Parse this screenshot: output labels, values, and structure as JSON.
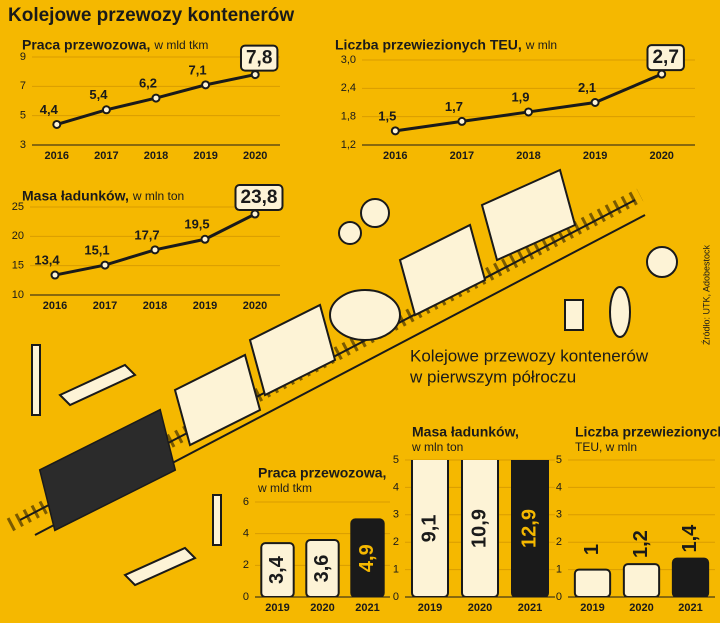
{
  "title": "Kolejowe przewozy kontenerów",
  "section_title": [
    "Kolejowe przewozy kontenerów",
    "w pierwszym półroczu"
  ],
  "source": "Źródło: UTK, Adobestock",
  "chart_data": [
    {
      "type": "line",
      "title": "Praca przewozowa,",
      "subtitle": "w mld tkm",
      "categories": [
        "2016",
        "2017",
        "2018",
        "2019",
        "2020"
      ],
      "values": [
        4.4,
        5.4,
        6.2,
        7.1,
        7.8
      ],
      "value_labels": [
        "4,4",
        "5,4",
        "6,2",
        "7,1",
        "7,8"
      ],
      "color": "#1a1a1a",
      "ylim": [
        3,
        9
      ],
      "yticks": [
        3,
        5,
        7,
        9
      ],
      "grid": true
    },
    {
      "type": "line",
      "title": "Liczba przewiezionych TEU,",
      "subtitle": "w mln",
      "categories": [
        "2016",
        "2017",
        "2018",
        "2019",
        "2020"
      ],
      "values": [
        1.5,
        1.7,
        1.9,
        2.1,
        2.7
      ],
      "value_labels": [
        "1,5",
        "1,7",
        "1,9",
        "2,1",
        "2,7"
      ],
      "color": "#1a1a1a",
      "ylim": [
        1.2,
        3.0
      ],
      "yticks": [
        {
          "value": 1.2,
          "label": "1,2"
        },
        {
          "value": 1.8,
          "label": "1,8"
        },
        {
          "value": 2.4,
          "label": "2,4"
        },
        {
          "value": 3.0,
          "label": "3,0"
        }
      ],
      "grid": true
    },
    {
      "type": "line",
      "title": "Masa ładunków,",
      "subtitle": "w mln ton",
      "categories": [
        "2016",
        "2017",
        "2018",
        "2019",
        "2020"
      ],
      "values": [
        13.4,
        15.1,
        17.7,
        19.5,
        23.8
      ],
      "value_labels": [
        "13,4",
        "15,1",
        "17,7",
        "19,5",
        "23,8"
      ],
      "color": "#1a1a1a",
      "ylim": [
        10,
        25
      ],
      "yticks": [
        10,
        15,
        20,
        25
      ],
      "grid": true
    },
    {
      "type": "bar",
      "title": "Praca przewozowa,",
      "subtitle": "w mld tkm",
      "categories": [
        "2019",
        "2020",
        "2021"
      ],
      "values": [
        3.4,
        3.6,
        4.9
      ],
      "value_labels": [
        "3,4",
        "3,6",
        "4,9"
      ],
      "colors": [
        "#fdf3d6",
        "#fdf3d6",
        "#1a1a1a"
      ],
      "ylim": [
        0,
        6
      ],
      "yticks": [
        0,
        2,
        4,
        6
      ],
      "grid": true
    },
    {
      "type": "bar",
      "title": "Masa ładunków,",
      "subtitle": "w mln ton",
      "categories": [
        "2019",
        "2020",
        "2021"
      ],
      "values": [
        9.1,
        10.9,
        12.9
      ],
      "value_labels": [
        "9,1",
        "10,9",
        "12,9"
      ],
      "colors": [
        "#fdf3d6",
        "#fdf3d6",
        "#1a1a1a"
      ],
      "ylim": [
        0,
        5
      ],
      "yticks": [
        0,
        1,
        2,
        3,
        4,
        5
      ],
      "grid": true
    },
    {
      "type": "bar",
      "title": "Liczba przewiezionych",
      "subtitle": "TEU, w mln",
      "categories": [
        "2019",
        "2020",
        "2021"
      ],
      "values": [
        1,
        1.2,
        1.4
      ],
      "value_labels": [
        "1",
        "1,2",
        "1,4"
      ],
      "colors": [
        "#fdf3d6",
        "#fdf3d6",
        "#1a1a1a"
      ],
      "ylim": [
        0,
        5
      ],
      "yticks": [
        0,
        1,
        2,
        3,
        4,
        5
      ],
      "grid": true
    }
  ]
}
